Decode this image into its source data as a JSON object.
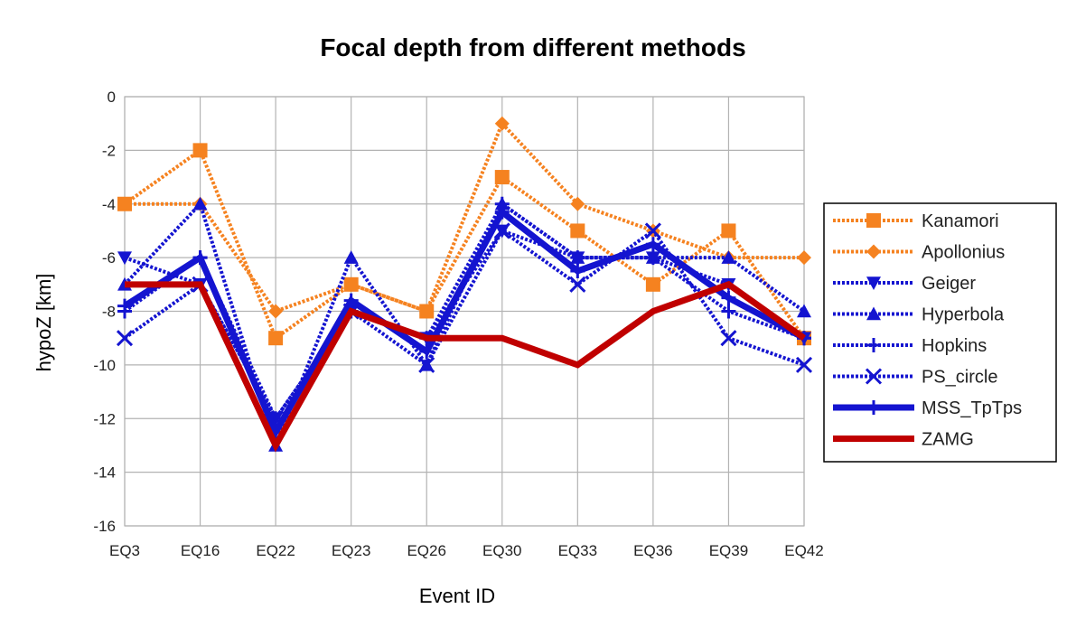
{
  "chart_data": {
    "type": "line",
    "title": "Focal depth from different methods",
    "xlabel": "Event ID",
    "ylabel": "hypoZ [km]",
    "ylim": [
      -16,
      0
    ],
    "yticks": [
      0,
      -2,
      -4,
      -6,
      -8,
      -10,
      -12,
      -14,
      -16
    ],
    "grid": true,
    "legend_position": "right",
    "categories": [
      "EQ3",
      "EQ16",
      "EQ22",
      "EQ23",
      "EQ26",
      "EQ30",
      "EQ33",
      "EQ36",
      "EQ39",
      "EQ42"
    ],
    "series": [
      {
        "name": "Kanamori",
        "color": "#f58220",
        "style": "dotted",
        "marker": "square",
        "values": [
          -4,
          -2,
          -9,
          -7,
          -8,
          -3,
          -5,
          -7,
          -5,
          -9
        ]
      },
      {
        "name": "Apollonius",
        "color": "#f58220",
        "style": "dotted",
        "marker": "diamond",
        "values": [
          -4,
          -4,
          -8,
          -7,
          -8,
          -1,
          -4,
          -5,
          -6,
          -6
        ]
      },
      {
        "name": "Geiger",
        "color": "#1414d0",
        "style": "dotted",
        "marker": "triangle-down",
        "values": [
          -6,
          -7,
          -12,
          -8,
          -9,
          -5,
          -6,
          -6,
          -7,
          -9
        ]
      },
      {
        "name": "Hyperbola",
        "color": "#1414d0",
        "style": "dotted",
        "marker": "triangle-up",
        "values": [
          -7,
          -4,
          -13,
          -6,
          -10,
          -4,
          -6,
          -6,
          -6,
          -8
        ]
      },
      {
        "name": "Hopkins",
        "color": "#1414d0",
        "style": "dotted",
        "marker": "plus",
        "values": [
          -8,
          -6,
          -12,
          -8,
          -9,
          -4,
          -6,
          -6,
          -8,
          -9
        ]
      },
      {
        "name": "PS_circle",
        "color": "#1414d0",
        "style": "dotted",
        "marker": "x",
        "values": [
          -9,
          -7,
          -12,
          -8,
          -10,
          -5,
          -7,
          -5,
          -9,
          -10
        ]
      },
      {
        "name": "MSS_TpTps",
        "color": "#1414d0",
        "style": "solid-thick",
        "marker": "plus",
        "values": [
          -7.8,
          -6,
          -12.5,
          -7.6,
          -9.5,
          -4.3,
          -6.5,
          -5.5,
          -7.5,
          -9
        ]
      },
      {
        "name": "ZAMG",
        "color": "#c00000",
        "style": "solid-thick",
        "marker": "none",
        "values": [
          -7,
          -7,
          -13,
          -8,
          -9,
          -9,
          -10,
          -8,
          -7,
          -9
        ]
      }
    ]
  }
}
